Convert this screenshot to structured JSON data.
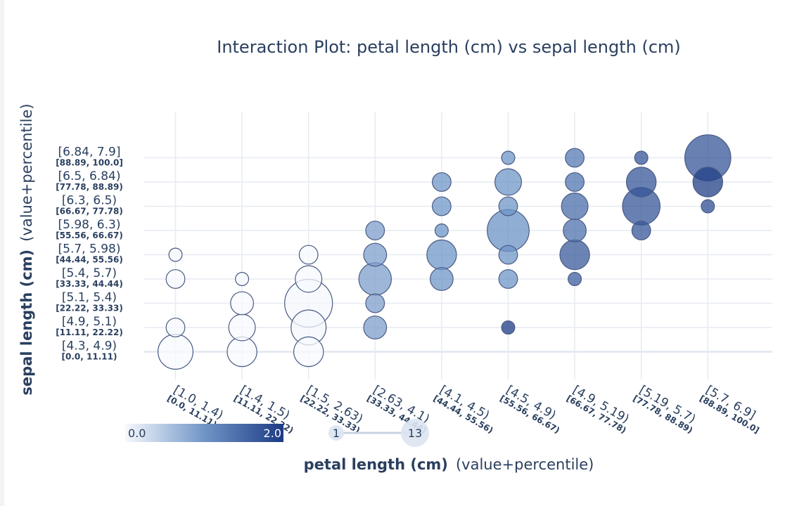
{
  "chart_data": {
    "type": "scatter",
    "title": "Interaction Plot: petal length (cm) vs sepal length (cm)",
    "xlabel": "petal length (cm)",
    "xlabel_suffix": "(value+percentile)",
    "ylabel": "sepal length (cm)",
    "ylabel_suffix": "(value+percentile)",
    "x_categories": [
      {
        "value": "[1.0, 1.4)",
        "percentile": "[0.0, 11.11)"
      },
      {
        "value": "[1.4, 1.5)",
        "percentile": "[11.11, 22.22)"
      },
      {
        "value": "[1.5, 2.63)",
        "percentile": "[22.22, 33.33)"
      },
      {
        "value": "[2.63, 4.1)",
        "percentile": "[33.33, 44.44)"
      },
      {
        "value": "[4.1, 4.5)",
        "percentile": "[44.44, 55.56)"
      },
      {
        "value": "[4.5, 4.9)",
        "percentile": "[55.56, 66.67)"
      },
      {
        "value": "[4.9, 5.19)",
        "percentile": "[66.67, 77.78)"
      },
      {
        "value": "[5.19, 5.7)",
        "percentile": "[77.78, 88.89)"
      },
      {
        "value": "[5.7, 6.9]",
        "percentile": "[88.89, 100.0]"
      }
    ],
    "y_categories": [
      {
        "value": "[4.3, 4.9)",
        "percentile": "[0.0, 11.11)"
      },
      {
        "value": "[4.9, 5.1)",
        "percentile": "[11.11, 22.22)"
      },
      {
        "value": "[5.1, 5.4)",
        "percentile": "[22.22, 33.33)"
      },
      {
        "value": "[5.4, 5.7)",
        "percentile": "[33.33, 44.44)"
      },
      {
        "value": "[5.7, 5.98)",
        "percentile": "[44.44, 55.56)"
      },
      {
        "value": "[5.98, 6.3)",
        "percentile": "[55.56, 66.67)"
      },
      {
        "value": "[6.3, 6.5)",
        "percentile": "[66.67, 77.78)"
      },
      {
        "value": "[6.5, 6.84)",
        "percentile": "[77.78, 88.89)"
      },
      {
        "value": "[6.84, 7.9]",
        "percentile": "[88.89, 100.0]"
      }
    ],
    "points": [
      {
        "x": 0,
        "y": 0,
        "count": 7,
        "value": 0.0
      },
      {
        "x": 0,
        "y": 1,
        "count": 2,
        "value": 0.0
      },
      {
        "x": 0,
        "y": 3,
        "count": 2,
        "value": 0.0
      },
      {
        "x": 0,
        "y": 4,
        "count": 1,
        "value": 0.0
      },
      {
        "x": 1,
        "y": 0,
        "count": 5,
        "value": 0.0
      },
      {
        "x": 1,
        "y": 1,
        "count": 4,
        "value": 0.0
      },
      {
        "x": 1,
        "y": 2,
        "count": 3,
        "value": 0.0
      },
      {
        "x": 1,
        "y": 3,
        "count": 1,
        "value": 0.0
      },
      {
        "x": 2,
        "y": 0,
        "count": 5,
        "value": 0.0
      },
      {
        "x": 2,
        "y": 1,
        "count": 7,
        "value": 0.02
      },
      {
        "x": 2,
        "y": 2,
        "count": 13,
        "value": 0.02
      },
      {
        "x": 2,
        "y": 3,
        "count": 4,
        "value": 0.0
      },
      {
        "x": 2,
        "y": 4,
        "count": 2,
        "value": 0.0
      },
      {
        "x": 3,
        "y": 1,
        "count": 3,
        "value": 0.9
      },
      {
        "x": 3,
        "y": 2,
        "count": 2,
        "value": 0.9
      },
      {
        "x": 3,
        "y": 3,
        "count": 6,
        "value": 0.9
      },
      {
        "x": 3,
        "y": 4,
        "count": 3,
        "value": 0.9
      },
      {
        "x": 3,
        "y": 5,
        "count": 2,
        "value": 0.9
      },
      {
        "x": 4,
        "y": 3,
        "count": 3,
        "value": 1.0
      },
      {
        "x": 4,
        "y": 4,
        "count": 5,
        "value": 1.0
      },
      {
        "x": 4,
        "y": 5,
        "count": 1,
        "value": 1.0
      },
      {
        "x": 4,
        "y": 6,
        "count": 2,
        "value": 1.0
      },
      {
        "x": 4,
        "y": 7,
        "count": 2,
        "value": 1.0
      },
      {
        "x": 5,
        "y": 1,
        "count": 1,
        "value": 2.0
      },
      {
        "x": 5,
        "y": 3,
        "count": 2,
        "value": 1.0
      },
      {
        "x": 5,
        "y": 4,
        "count": 2,
        "value": 1.0
      },
      {
        "x": 5,
        "y": 5,
        "count": 10,
        "value": 1.05
      },
      {
        "x": 5,
        "y": 6,
        "count": 2,
        "value": 1.0
      },
      {
        "x": 5,
        "y": 7,
        "count": 4,
        "value": 1.0
      },
      {
        "x": 5,
        "y": 8,
        "count": 1,
        "value": 1.0
      },
      {
        "x": 6,
        "y": 3,
        "count": 1,
        "value": 1.6
      },
      {
        "x": 6,
        "y": 4,
        "count": 5,
        "value": 1.65
      },
      {
        "x": 6,
        "y": 5,
        "count": 3,
        "value": 1.4
      },
      {
        "x": 6,
        "y": 6,
        "count": 4,
        "value": 1.45
      },
      {
        "x": 6,
        "y": 7,
        "count": 2,
        "value": 1.35
      },
      {
        "x": 6,
        "y": 8,
        "count": 2,
        "value": 1.3
      },
      {
        "x": 7,
        "y": 5,
        "count": 2,
        "value": 1.7
      },
      {
        "x": 7,
        "y": 6,
        "count": 8,
        "value": 1.7
      },
      {
        "x": 7,
        "y": 7,
        "count": 5,
        "value": 1.7
      },
      {
        "x": 7,
        "y": 8,
        "count": 1,
        "value": 1.7
      },
      {
        "x": 8,
        "y": 6,
        "count": 1,
        "value": 1.8
      },
      {
        "x": 8,
        "y": 7,
        "count": 5,
        "value": 1.95
      },
      {
        "x": 8,
        "y": 8,
        "count": 12,
        "value": 1.7
      }
    ],
    "colorbar": {
      "min_label": "0.0",
      "max_label": "2.0",
      "min": 0.0,
      "max": 2.0,
      "colors": [
        "#f7f9fd",
        "#1d3b84"
      ]
    },
    "size_legend": {
      "min_label": "1",
      "max_label": "13",
      "min": 1,
      "max": 13
    },
    "grid": true
  }
}
